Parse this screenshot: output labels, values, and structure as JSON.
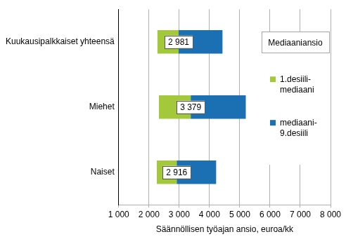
{
  "chart_data": {
    "type": "bar",
    "orientation": "horizontal",
    "categories": [
      "Kuukausipalkkaiset yhteensä",
      "Miehet",
      "Naiset"
    ],
    "series": [
      {
        "name": "1.desiili-mediaani",
        "color": "#a3c93a",
        "values": [
          [
            2280,
            2981
          ],
          [
            2330,
            3379
          ],
          [
            2260,
            2916
          ]
        ]
      },
      {
        "name": "mediaani-9.desiili",
        "color": "#1b6fb3",
        "values": [
          [
            2981,
            4430
          ],
          [
            3379,
            5200
          ],
          [
            2916,
            4220
          ]
        ]
      }
    ],
    "medians": [
      2981,
      3379,
      2916
    ],
    "median_labels": [
      "2 981",
      "3 379",
      "2 916"
    ],
    "legend_title": "Mediaaniansio",
    "legend": "upper right",
    "xlabel": "Säännöllisen työajan ansio, euroa/kk",
    "xlim": [
      1000,
      8000
    ],
    "xticks": [
      {
        "value": 1000,
        "label": "1 000"
      },
      {
        "value": 2000,
        "label": "2 000"
      },
      {
        "value": 3000,
        "label": "3 000"
      },
      {
        "value": 4000,
        "label": "4 000"
      },
      {
        "value": 5000,
        "label": "5 000"
      },
      {
        "value": 6000,
        "label": "6 000"
      },
      {
        "value": 7000,
        "label": "7 000"
      },
      {
        "value": 8000,
        "label": "8 000"
      }
    ],
    "grid": true,
    "data_labels": true
  }
}
